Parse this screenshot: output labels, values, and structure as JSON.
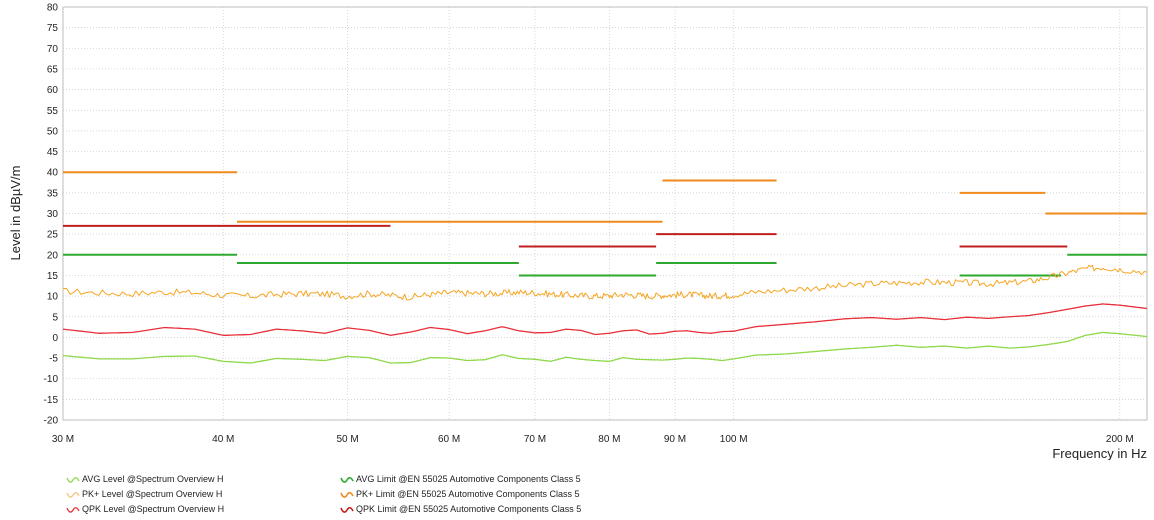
{
  "chart_data": {
    "type": "line",
    "xscale": "log",
    "xlabel": "Frequency in Hz",
    "ylabel": "Level in dBµV/m",
    "xlim": [
      30000000,
      210000000
    ],
    "ylim": [
      -20,
      80
    ],
    "grid": true,
    "yticks": [
      -20,
      -15,
      -10,
      -5,
      0,
      5,
      10,
      15,
      20,
      25,
      30,
      35,
      40,
      45,
      50,
      55,
      60,
      65,
      70,
      75,
      80
    ],
    "xticks": [
      {
        "value": 30000000,
        "label": "30 M"
      },
      {
        "value": 40000000,
        "label": "40 M"
      },
      {
        "value": 50000000,
        "label": "50 M"
      },
      {
        "value": 60000000,
        "label": "60 M"
      },
      {
        "value": 70000000,
        "label": "70 M"
      },
      {
        "value": 80000000,
        "label": "80 M"
      },
      {
        "value": 90000000,
        "label": "90 M"
      },
      {
        "value": 100000000,
        "label": "100 M"
      },
      {
        "value": 200000000,
        "label": "200 M"
      }
    ],
    "series": [
      {
        "name": "AVG Level @Spectrum Overview H",
        "color": "#8ed84a",
        "kind": "level",
        "x": [
          30,
          32,
          34,
          36,
          38,
          40,
          42,
          44,
          46,
          48,
          50,
          52,
          54,
          56,
          58,
          60,
          62,
          64,
          66,
          68,
          70,
          72,
          74,
          76,
          78,
          80,
          82,
          84,
          86,
          88,
          90,
          92,
          94,
          96,
          98,
          100,
          104,
          110,
          116,
          122,
          128,
          134,
          140,
          146,
          152,
          158,
          164,
          170,
          176,
          182,
          188,
          194,
          200,
          210
        ],
        "y": [
          -4.4,
          -5.2,
          -5.2,
          -4.6,
          -4.5,
          -5.8,
          -6.2,
          -5.1,
          -5.3,
          -5.6,
          -4.6,
          -4.9,
          -6.2,
          -6.1,
          -4.9,
          -5.0,
          -5.6,
          -5.4,
          -4.2,
          -5.1,
          -5.3,
          -5.8,
          -4.8,
          -5.3,
          -5.6,
          -5.8,
          -4.9,
          -5.3,
          -5.4,
          -5.5,
          -5.3,
          -5.0,
          -5.1,
          -5.3,
          -5.6,
          -5.2,
          -4.3,
          -4.0,
          -3.4,
          -2.8,
          -2.4,
          -1.9,
          -2.4,
          -2.1,
          -2.6,
          -2.1,
          -2.6,
          -2.3,
          -1.7,
          -1.0,
          0.5,
          1.2,
          0.9,
          0.2
        ]
      },
      {
        "name": "PK+ Level @Spectrum Overview H",
        "color": "#f5a623",
        "kind": "level",
        "noise": 0.8,
        "x": [
          30,
          32,
          34,
          36,
          38,
          40,
          42,
          44,
          46,
          48,
          50,
          52,
          54,
          56,
          58,
          60,
          62,
          64,
          66,
          68,
          70,
          72,
          74,
          76,
          78,
          80,
          82,
          84,
          86,
          88,
          90,
          92,
          94,
          96,
          98,
          100,
          104,
          110,
          116,
          122,
          128,
          134,
          140,
          146,
          152,
          158,
          164,
          170,
          176,
          182,
          188,
          194,
          200,
          210
        ],
        "y": [
          11.2,
          10.8,
          10.6,
          11.0,
          10.8,
          10.2,
          10.0,
          10.4,
          10.6,
          10.5,
          10.0,
          10.6,
          10.2,
          9.8,
          10.4,
          10.8,
          10.7,
          10.6,
          10.7,
          10.9,
          10.8,
          10.5,
          10.3,
          10.1,
          10.0,
          10.1,
          10.4,
          10.2,
          10.0,
          10.2,
          10.3,
          10.4,
          10.2,
          10.0,
          10.1,
          10.3,
          11.0,
          11.5,
          12.0,
          12.5,
          13.0,
          13.2,
          13.4,
          13.3,
          13.2,
          13.0,
          13.2,
          13.6,
          14.5,
          15.6,
          16.6,
          17.0,
          16.5,
          15.8
        ]
      },
      {
        "name": "QPK Level @Spectrum Overview H",
        "color": "#e8303a",
        "kind": "level",
        "x": [
          30,
          32,
          34,
          36,
          38,
          40,
          42,
          44,
          46,
          48,
          50,
          52,
          54,
          56,
          58,
          60,
          62,
          64,
          66,
          68,
          70,
          72,
          74,
          76,
          78,
          80,
          82,
          84,
          86,
          88,
          90,
          92,
          94,
          96,
          98,
          100,
          104,
          110,
          116,
          122,
          128,
          134,
          140,
          146,
          152,
          158,
          164,
          170,
          176,
          182,
          188,
          194,
          200,
          210
        ],
        "y": [
          2.0,
          1.0,
          1.2,
          2.4,
          2.0,
          0.5,
          0.7,
          2.0,
          1.6,
          1.0,
          2.3,
          1.7,
          0.5,
          1.3,
          2.4,
          1.9,
          0.9,
          1.6,
          2.6,
          1.6,
          1.1,
          1.2,
          2.0,
          1.7,
          0.7,
          1.0,
          1.6,
          1.8,
          0.8,
          1.0,
          1.5,
          1.6,
          1.2,
          1.0,
          1.4,
          1.5,
          2.6,
          3.2,
          3.8,
          4.5,
          4.8,
          4.4,
          4.8,
          4.3,
          4.9,
          4.6,
          5.0,
          5.3,
          6.0,
          6.8,
          7.6,
          8.1,
          7.8,
          7.0
        ]
      },
      {
        "name": "AVG Limit @EN 55025 Automotive Components Class 5",
        "color": "#2ea82e",
        "kind": "limit",
        "segments": [
          [
            30,
            41,
            20
          ],
          [
            41,
            68,
            18
          ],
          [
            68,
            87,
            15
          ],
          [
            87,
            108,
            18
          ],
          [
            150,
            180,
            15
          ],
          [
            182,
            210,
            20
          ]
        ]
      },
      {
        "name": "PK+ Limit @EN 55025 Automotive Components Class 5",
        "color": "#f08a1c",
        "kind": "limit",
        "segments": [
          [
            30,
            41,
            40
          ],
          [
            41,
            88,
            28
          ],
          [
            88,
            108,
            38
          ],
          [
            150,
            175,
            35
          ],
          [
            175,
            210,
            30
          ]
        ]
      },
      {
        "name": "QPK Limit @EN 55025 Automotive Components Class 5",
        "color": "#c01f1f",
        "kind": "limit",
        "segments": [
          [
            30,
            54,
            27
          ],
          [
            68,
            87,
            22
          ],
          [
            87,
            108,
            25
          ],
          [
            150,
            182,
            22
          ]
        ]
      }
    ]
  }
}
